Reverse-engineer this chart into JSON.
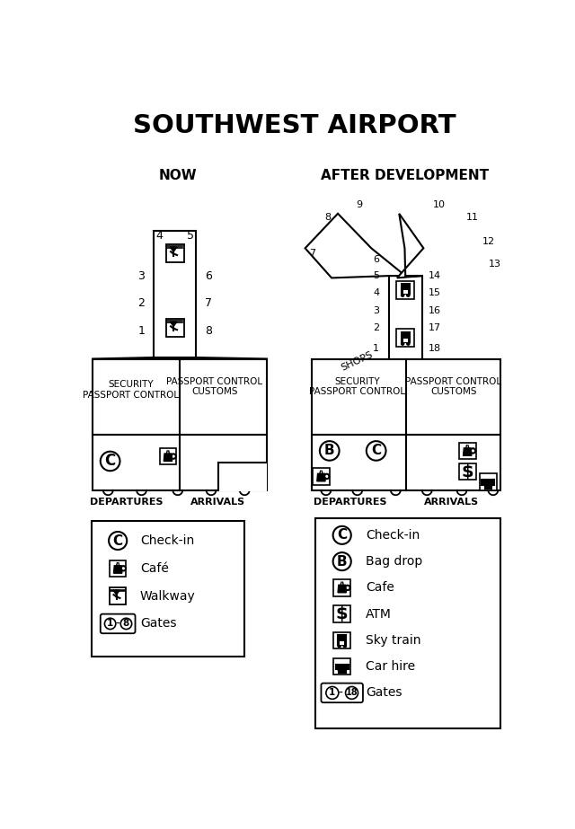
{
  "title": "SOUTHWEST AIRPORT",
  "now_label": "NOW",
  "after_label": "AFTER DEVELOPMENT",
  "departures_label": "DEPARTURES",
  "arrivals_label": "ARRIVALS",
  "security_passport": "SECURITY\nPASSPORT CONTROL",
  "passport_customs": "PASSPORT CONTROL\nCUSTOMS",
  "shops_label": "SHOPS"
}
